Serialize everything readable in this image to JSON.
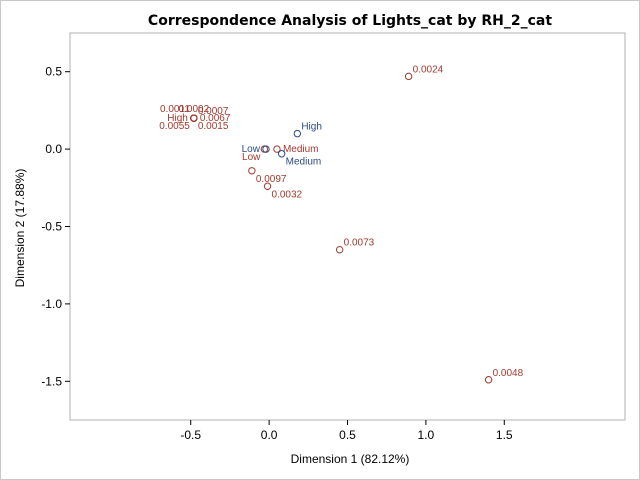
{
  "chart_data": {
    "type": "scatter",
    "title": "Correspondence Analysis of Lights_cat by RH_2_cat",
    "xlabel": "Dimension 1 (82.12%)",
    "ylabel": "Dimension 2 (17.88%)",
    "xlim": [
      -1.27,
      2.27
    ],
    "ylim": [
      -1.75,
      0.75
    ],
    "xticks": [
      -0.5,
      0.0,
      0.5,
      1.0,
      1.5
    ],
    "xtick_labels": [
      "-0.5",
      "0.0",
      "0.5",
      "1.0",
      "1.5"
    ],
    "yticks": [
      0.5,
      0.0,
      -0.5,
      -1.0,
      -1.5
    ],
    "ytick_labels": [
      "0.5",
      "0.0",
      "-0.5",
      "-1.0",
      "-1.5"
    ],
    "colors": {
      "red_series": "#a23a2e",
      "blue_series": "#2a4a86"
    },
    "series": [
      {
        "color_key": "red_series",
        "points": [
          {
            "label": "0.0024",
            "x": 0.89,
            "y": 0.47,
            "pos": "ne"
          },
          {
            "label": "0.0073",
            "x": 0.45,
            "y": -0.65,
            "pos": "ne"
          },
          {
            "label": "0.0048",
            "x": 1.4,
            "y": -1.49,
            "pos": "ne"
          },
          {
            "label": "0.0097",
            "x": -0.11,
            "y": -0.14,
            "pos": "se"
          },
          {
            "label": "0.0032",
            "x": -0.01,
            "y": -0.24,
            "pos": "se"
          },
          {
            "label": "Medium",
            "x": 0.05,
            "y": 0.0,
            "pos": "e"
          },
          {
            "label": "Low",
            "x": -0.03,
            "y": 0.0,
            "pos": "sw"
          },
          {
            "label": "0.0067",
            "x": -0.48,
            "y": 0.2,
            "pos": "e"
          },
          {
            "label": "High",
            "x": -0.48,
            "y": 0.2,
            "pos": "w"
          },
          {
            "label": "0.0011",
            "x": -0.48,
            "y": 0.2,
            "pos": "nw"
          },
          {
            "label": "0.0002",
            "x": -0.48,
            "y": 0.2,
            "pos": "n"
          },
          {
            "label": "0.0007",
            "x": -0.48,
            "y": 0.2,
            "pos": "ne"
          },
          {
            "label": "0.0055",
            "x": -0.48,
            "y": 0.2,
            "pos": "sw"
          },
          {
            "label": "0.0015",
            "x": -0.48,
            "y": 0.2,
            "pos": "se"
          }
        ]
      },
      {
        "color_key": "blue_series",
        "points": [
          {
            "label": "High",
            "x": 0.18,
            "y": 0.1,
            "pos": "ne"
          },
          {
            "label": "Low",
            "x": -0.02,
            "y": 0.0,
            "pos": "w"
          },
          {
            "label": "Medium",
            "x": 0.08,
            "y": -0.03,
            "pos": "se"
          }
        ]
      }
    ]
  }
}
